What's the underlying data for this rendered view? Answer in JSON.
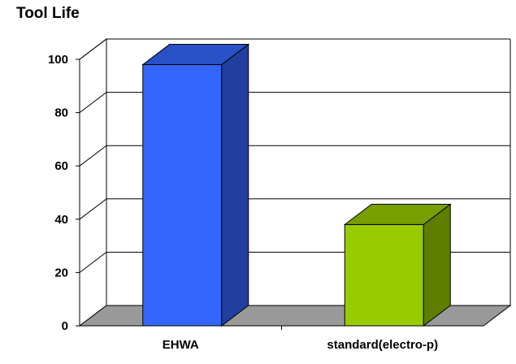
{
  "chart_data": {
    "type": "bar",
    "title": "Tool Life",
    "categories": [
      "EHWA",
      "standard(electro-p)"
    ],
    "values": [
      98,
      38
    ],
    "colors": [
      "#3366ff",
      "#99cc00"
    ],
    "ylim": [
      0,
      100
    ],
    "yticks": [
      0,
      20,
      40,
      60,
      80,
      100
    ],
    "grid": true,
    "xlabel": "",
    "ylabel": "",
    "style": "3d-bar"
  }
}
